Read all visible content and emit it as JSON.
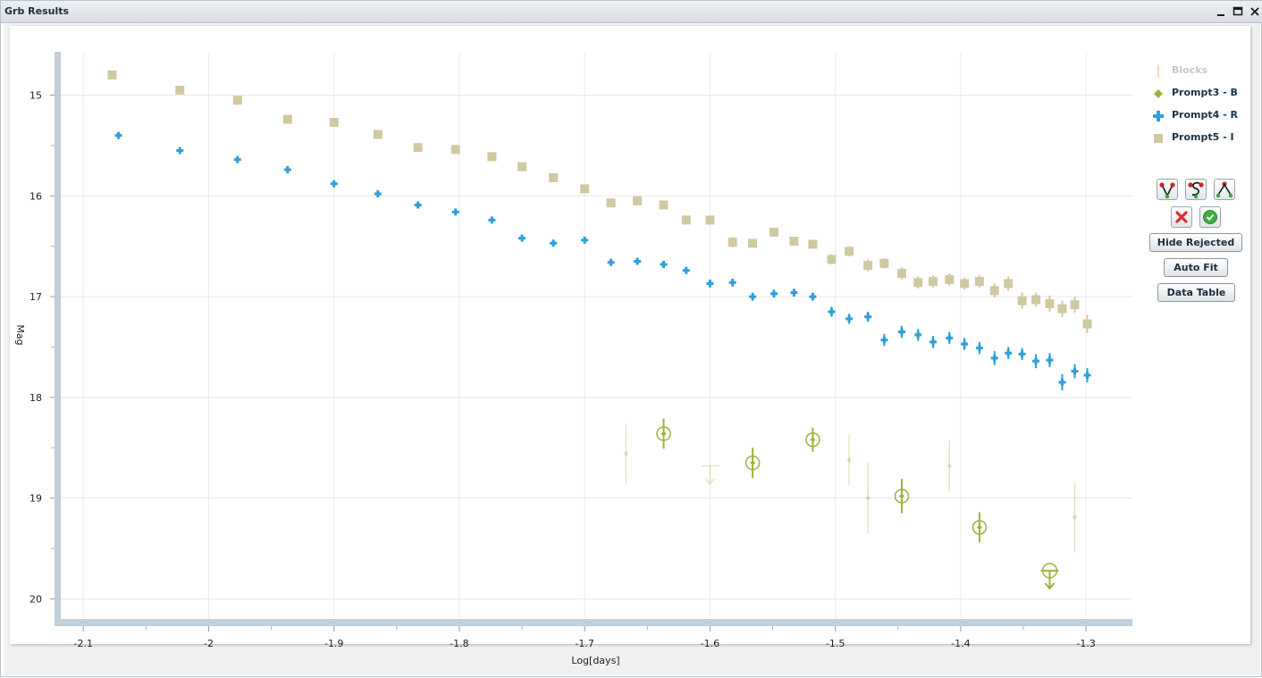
{
  "window": {
    "title": "Grb Results",
    "controls": [
      "minimize-icon",
      "maximize-icon",
      "close-icon"
    ]
  },
  "legend": [
    {
      "label": "Blocks",
      "symbol": "vertical-bar",
      "color": "#f2dcc0",
      "enabled": false
    },
    {
      "label": "Prompt3 - B",
      "symbol": "diamond",
      "color": "#9cb43c",
      "enabled": true
    },
    {
      "label": "Prompt4 - R",
      "symbol": "plus",
      "color": "#2f9fd8",
      "enabled": true
    },
    {
      "label": "Prompt5 - I",
      "symbol": "square",
      "color": "#cfc9a2",
      "enabled": true
    }
  ],
  "tools": {
    "icon_buttons": [
      {
        "icon": "fit-v-icon"
      },
      {
        "icon": "fit-s-icon"
      },
      {
        "icon": "fit-peak-icon"
      },
      {
        "icon": "reject-icon"
      },
      {
        "icon": "accept-icon"
      }
    ],
    "hide_rejected_label": "Hide Rejected",
    "auto_fit_label": "Auto Fit",
    "data_table_label": "Data Table"
  },
  "chart_data": {
    "type": "scatter",
    "title": "",
    "xlabel": "Log[days]",
    "ylabel": "Mag",
    "xlim": [
      -2.118,
      -1.263
    ],
    "ylim": [
      20.2,
      14.57
    ],
    "y_inverted": true,
    "xticks": [
      -2.1,
      -2,
      -1.9,
      -1.8,
      -1.7,
      -1.6,
      -1.5,
      -1.4,
      -1.3
    ],
    "xtick_labels": [
      "-2.1",
      "-2",
      "-1.9",
      "-1.8",
      "-1.7",
      "-1.6",
      "-1.5",
      "-1.4",
      "-1.3"
    ],
    "yticks": [
      15,
      16,
      17,
      18,
      19,
      20
    ],
    "ytick_labels": [
      "15",
      "16",
      "17",
      "18",
      "19",
      "20"
    ],
    "grid": true,
    "legend_position": "right",
    "series": [
      {
        "name": "Prompt5 - I",
        "marker": "square",
        "color": "#cfc9a2",
        "points": [
          {
            "x": -2.077,
            "y": 14.8,
            "err": 0
          },
          {
            "x": -2.023,
            "y": 14.95,
            "err": 0
          },
          {
            "x": -1.977,
            "y": 15.05,
            "err": 0
          },
          {
            "x": -1.937,
            "y": 15.24,
            "err": 0
          },
          {
            "x": -1.9,
            "y": 15.27,
            "err": 0
          },
          {
            "x": -1.865,
            "y": 15.39,
            "err": 0
          },
          {
            "x": -1.833,
            "y": 15.52,
            "err": 0
          },
          {
            "x": -1.803,
            "y": 15.54,
            "err": 0
          },
          {
            "x": -1.774,
            "y": 15.61,
            "err": 0
          },
          {
            "x": -1.75,
            "y": 15.71,
            "err": 0
          },
          {
            "x": -1.725,
            "y": 15.82,
            "err": 0
          },
          {
            "x": -1.7,
            "y": 15.93,
            "err": 0
          },
          {
            "x": -1.679,
            "y": 16.07,
            "err": 0.03
          },
          {
            "x": -1.658,
            "y": 16.05,
            "err": 0.03
          },
          {
            "x": -1.637,
            "y": 16.09,
            "err": 0.03
          },
          {
            "x": -1.619,
            "y": 16.24,
            "err": 0.03
          },
          {
            "x": -1.6,
            "y": 16.24,
            "err": 0.03
          },
          {
            "x": -1.582,
            "y": 16.46,
            "err": 0.05
          },
          {
            "x": -1.566,
            "y": 16.47,
            "err": 0.04
          },
          {
            "x": -1.549,
            "y": 16.36,
            "err": 0.04
          },
          {
            "x": -1.533,
            "y": 16.45,
            "err": 0.04
          },
          {
            "x": -1.518,
            "y": 16.48,
            "err": 0.04
          },
          {
            "x": -1.503,
            "y": 16.63,
            "err": 0.05
          },
          {
            "x": -1.489,
            "y": 16.55,
            "err": 0.05
          },
          {
            "x": -1.474,
            "y": 16.69,
            "err": 0.06
          },
          {
            "x": -1.461,
            "y": 16.67,
            "err": 0.05
          },
          {
            "x": -1.447,
            "y": 16.77,
            "err": 0.06
          },
          {
            "x": -1.434,
            "y": 16.86,
            "err": 0.06
          },
          {
            "x": -1.422,
            "y": 16.85,
            "err": 0.06
          },
          {
            "x": -1.409,
            "y": 16.83,
            "err": 0.06
          },
          {
            "x": -1.397,
            "y": 16.87,
            "err": 0.06
          },
          {
            "x": -1.385,
            "y": 16.85,
            "err": 0.06
          },
          {
            "x": -1.373,
            "y": 16.94,
            "err": 0.07
          },
          {
            "x": -1.362,
            "y": 16.87,
            "err": 0.07
          },
          {
            "x": -1.351,
            "y": 17.04,
            "err": 0.08
          },
          {
            "x": -1.34,
            "y": 17.03,
            "err": 0.07
          },
          {
            "x": -1.329,
            "y": 17.07,
            "err": 0.08
          },
          {
            "x": -1.319,
            "y": 17.12,
            "err": 0.08
          },
          {
            "x": -1.309,
            "y": 17.08,
            "err": 0.08
          },
          {
            "x": -1.299,
            "y": 17.27,
            "err": 0.09
          }
        ]
      },
      {
        "name": "Prompt4 - R",
        "marker": "plus",
        "color": "#2f9fd8",
        "points": [
          {
            "x": -2.072,
            "y": 15.4,
            "err": 0
          },
          {
            "x": -2.023,
            "y": 15.55,
            "err": 0
          },
          {
            "x": -1.977,
            "y": 15.64,
            "err": 0
          },
          {
            "x": -1.937,
            "y": 15.74,
            "err": 0
          },
          {
            "x": -1.9,
            "y": 15.88,
            "err": 0
          },
          {
            "x": -1.865,
            "y": 15.98,
            "err": 0
          },
          {
            "x": -1.833,
            "y": 16.09,
            "err": 0
          },
          {
            "x": -1.803,
            "y": 16.16,
            "err": 0
          },
          {
            "x": -1.774,
            "y": 16.24,
            "err": 0
          },
          {
            "x": -1.75,
            "y": 16.42,
            "err": 0
          },
          {
            "x": -1.725,
            "y": 16.47,
            "err": 0
          },
          {
            "x": -1.7,
            "y": 16.44,
            "err": 0.03
          },
          {
            "x": -1.679,
            "y": 16.66,
            "err": 0.03
          },
          {
            "x": -1.658,
            "y": 16.65,
            "err": 0.03
          },
          {
            "x": -1.637,
            "y": 16.68,
            "err": 0.03
          },
          {
            "x": -1.619,
            "y": 16.74,
            "err": 0.03
          },
          {
            "x": -1.6,
            "y": 16.87,
            "err": 0.04
          },
          {
            "x": -1.582,
            "y": 16.86,
            "err": 0.04
          },
          {
            "x": -1.566,
            "y": 17.0,
            "err": 0.04
          },
          {
            "x": -1.549,
            "y": 16.97,
            "err": 0.04
          },
          {
            "x": -1.533,
            "y": 16.96,
            "err": 0.04
          },
          {
            "x": -1.518,
            "y": 17.0,
            "err": 0.04
          },
          {
            "x": -1.503,
            "y": 17.15,
            "err": 0.05
          },
          {
            "x": -1.489,
            "y": 17.22,
            "err": 0.05
          },
          {
            "x": -1.474,
            "y": 17.2,
            "err": 0.05
          },
          {
            "x": -1.461,
            "y": 17.43,
            "err": 0.06
          },
          {
            "x": -1.447,
            "y": 17.35,
            "err": 0.06
          },
          {
            "x": -1.434,
            "y": 17.38,
            "err": 0.06
          },
          {
            "x": -1.422,
            "y": 17.45,
            "err": 0.06
          },
          {
            "x": -1.409,
            "y": 17.41,
            "err": 0.06
          },
          {
            "x": -1.397,
            "y": 17.47,
            "err": 0.06
          },
          {
            "x": -1.385,
            "y": 17.51,
            "err": 0.06
          },
          {
            "x": -1.373,
            "y": 17.61,
            "err": 0.07
          },
          {
            "x": -1.362,
            "y": 17.56,
            "err": 0.06
          },
          {
            "x": -1.351,
            "y": 17.57,
            "err": 0.06
          },
          {
            "x": -1.34,
            "y": 17.64,
            "err": 0.07
          },
          {
            "x": -1.329,
            "y": 17.63,
            "err": 0.07
          },
          {
            "x": -1.319,
            "y": 17.85,
            "err": 0.08
          },
          {
            "x": -1.309,
            "y": 17.74,
            "err": 0.07
          },
          {
            "x": -1.299,
            "y": 17.78,
            "err": 0.07
          }
        ]
      },
      {
        "name": "Prompt3 - B",
        "marker": "diamond",
        "color": "#9cb43c",
        "points": [
          {
            "x": -1.667,
            "y": 18.56,
            "err": 0.3,
            "state": "rejected"
          },
          {
            "x": -1.637,
            "y": 18.36,
            "err": 0.15,
            "state": "highlighted"
          },
          {
            "x": -1.6,
            "y": 18.68,
            "err": 0,
            "state": "rejected-upper-limit"
          },
          {
            "x": -1.566,
            "y": 18.65,
            "err": 0.15,
            "state": "highlighted"
          },
          {
            "x": -1.518,
            "y": 18.42,
            "err": 0.12,
            "state": "highlighted"
          },
          {
            "x": -1.489,
            "y": 18.62,
            "err": 0.25,
            "state": "rejected"
          },
          {
            "x": -1.474,
            "y": 19.0,
            "err": 0.35,
            "state": "rejected"
          },
          {
            "x": -1.447,
            "y": 18.98,
            "err": 0.17,
            "state": "highlighted"
          },
          {
            "x": -1.409,
            "y": 18.68,
            "err": 0.25,
            "state": "rejected"
          },
          {
            "x": -1.385,
            "y": 19.29,
            "err": 0.15,
            "state": "highlighted"
          },
          {
            "x": -1.329,
            "y": 19.72,
            "err": 0,
            "state": "upper-limit"
          },
          {
            "x": -1.309,
            "y": 19.19,
            "err": 0.35,
            "state": "rejected"
          }
        ]
      }
    ]
  }
}
